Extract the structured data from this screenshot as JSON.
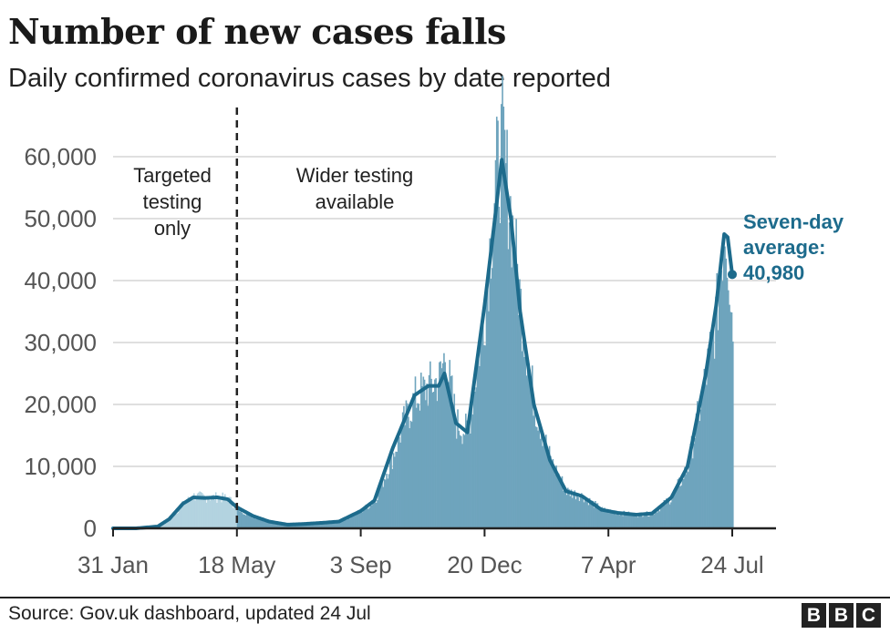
{
  "title": "Number of new cases falls",
  "subtitle": "Daily confirmed coronavirus cases by date reported",
  "source": "Source: Gov.uk dashboard, updated 24 Jul",
  "logo_letters": [
    "B",
    "B",
    "C"
  ],
  "annotations": {
    "left": [
      "Targeted",
      "testing",
      "only"
    ],
    "right": [
      "Wider testing",
      "available"
    ],
    "average": [
      "Seven-day",
      "average:",
      "40,980"
    ]
  },
  "colors": {
    "bar_early": "#b3d3e0",
    "bar": "#6ea4bd",
    "line": "#1d6b8c",
    "grid": "#cccccc",
    "axis": "#222222"
  },
  "chart_data": {
    "type": "bar",
    "y_ticks": [
      0,
      10000,
      20000,
      30000,
      40000,
      50000,
      60000
    ],
    "y_tick_labels": [
      "0",
      "10,000",
      "20,000",
      "30,000",
      "40,000",
      "50,000",
      "60,000"
    ],
    "ylim": [
      0,
      68000
    ],
    "x_ticks": [
      "31 Jan",
      "18 May",
      "3 Sep",
      "20 Dec",
      "7 Apr",
      "24 Jul"
    ],
    "grid": true,
    "divider_date": "18 May",
    "series": [
      {
        "name": "Daily confirmed cases",
        "type": "bar",
        "points": [
          [
            "31 Jan",
            0
          ],
          [
            "20 Feb",
            0
          ],
          [
            "10 Mar",
            300
          ],
          [
            "20 Mar",
            1500
          ],
          [
            "1 Apr",
            4000
          ],
          [
            "10 Apr",
            5200
          ],
          [
            "20 Apr",
            5000
          ],
          [
            "1 May",
            5000
          ],
          [
            "10 May",
            4800
          ],
          [
            "18 May",
            3200
          ],
          [
            "1 Jun",
            1900
          ],
          [
            "15 Jun",
            1000
          ],
          [
            "1 Jul",
            650
          ],
          [
            "15 Jul",
            650
          ],
          [
            "1 Aug",
            900
          ],
          [
            "15 Aug",
            1100
          ],
          [
            "3 Sep",
            2800
          ],
          [
            "15 Sep",
            4500
          ],
          [
            "1 Oct",
            12000
          ],
          [
            "10 Oct",
            17000
          ],
          [
            "20 Oct",
            21000
          ],
          [
            "1 Nov",
            23000
          ],
          [
            "10 Nov",
            24000
          ],
          [
            "15 Nov",
            28000
          ],
          [
            "25 Nov",
            17000
          ],
          [
            "5 Dec",
            15500
          ],
          [
            "20 Dec",
            36000
          ],
          [
            "29 Dec",
            56000
          ],
          [
            "4 Jan",
            62000
          ],
          [
            "12 Jan",
            50000
          ],
          [
            "20 Jan",
            36000
          ],
          [
            "1 Feb",
            20000
          ],
          [
            "15 Feb",
            11000
          ],
          [
            "1 Mar",
            6000
          ],
          [
            "15 Mar",
            5200
          ],
          [
            "1 Apr",
            3000
          ],
          [
            "15 Apr",
            2500
          ],
          [
            "1 May",
            2200
          ],
          [
            "15 May",
            2400
          ],
          [
            "1 Jun",
            5000
          ],
          [
            "15 Jun",
            10000
          ],
          [
            "1 Jul",
            25000
          ],
          [
            "10 Jul",
            35000
          ],
          [
            "17 Jul",
            50000
          ],
          [
            "20 Jul",
            44000
          ],
          [
            "24 Jul",
            32000
          ]
        ]
      },
      {
        "name": "Seven-day average",
        "type": "line",
        "points": [
          [
            "31 Jan",
            0
          ],
          [
            "20 Feb",
            0
          ],
          [
            "10 Mar",
            300
          ],
          [
            "20 Mar",
            1500
          ],
          [
            "1 Apr",
            4000
          ],
          [
            "10 Apr",
            5000
          ],
          [
            "20 Apr",
            4900
          ],
          [
            "1 May",
            5000
          ],
          [
            "10 May",
            4700
          ],
          [
            "18 May",
            3400
          ],
          [
            "1 Jun",
            2000
          ],
          [
            "15 Jun",
            1100
          ],
          [
            "1 Jul",
            600
          ],
          [
            "15 Jul",
            700
          ],
          [
            "1 Aug",
            900
          ],
          [
            "15 Aug",
            1100
          ],
          [
            "3 Sep",
            2800
          ],
          [
            "15 Sep",
            4500
          ],
          [
            "1 Oct",
            13000
          ],
          [
            "10 Oct",
            17000
          ],
          [
            "20 Oct",
            21500
          ],
          [
            "1 Nov",
            23000
          ],
          [
            "10 Nov",
            23000
          ],
          [
            "15 Nov",
            25000
          ],
          [
            "25 Nov",
            17000
          ],
          [
            "5 Dec",
            15500
          ],
          [
            "20 Dec",
            36000
          ],
          [
            "29 Dec",
            50000
          ],
          [
            "4 Jan",
            59500
          ],
          [
            "12 Jan",
            50000
          ],
          [
            "20 Jan",
            35000
          ],
          [
            "1 Feb",
            20000
          ],
          [
            "15 Feb",
            11000
          ],
          [
            "1 Mar",
            6000
          ],
          [
            "15 Mar",
            5200
          ],
          [
            "1 Apr",
            3000
          ],
          [
            "15 Apr",
            2500
          ],
          [
            "1 May",
            2200
          ],
          [
            "15 May",
            2400
          ],
          [
            "1 Jun",
            5000
          ],
          [
            "15 Jun",
            10000
          ],
          [
            "1 Jul",
            25000
          ],
          [
            "10 Jul",
            36000
          ],
          [
            "17 Jul",
            47500
          ],
          [
            "20 Jul",
            47000
          ],
          [
            "24 Jul",
            40980
          ]
        ]
      }
    ]
  }
}
